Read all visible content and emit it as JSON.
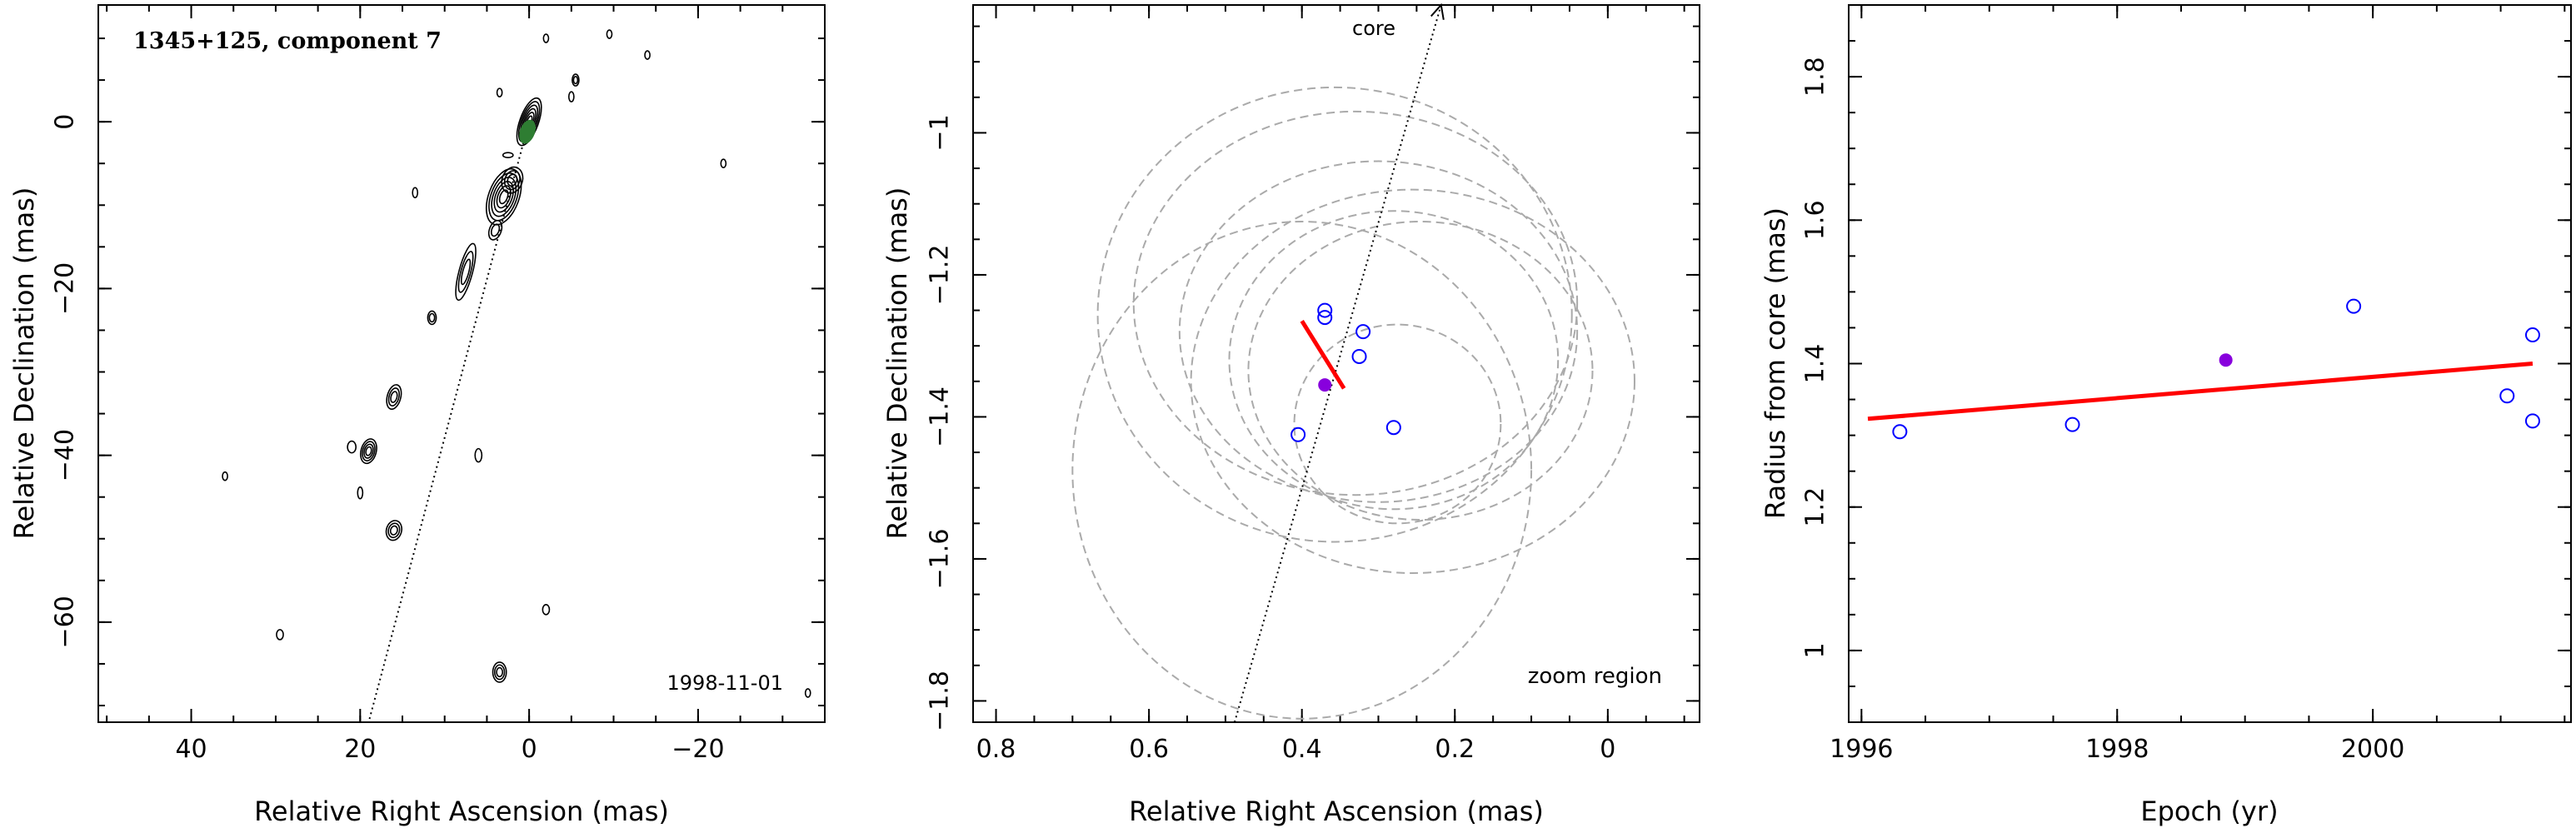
{
  "chart_data": [
    {
      "type": "scatter",
      "panel": "left",
      "title": "1345+125, component 7",
      "date": "1998-11-01",
      "xlabel": "Relative Right Ascension (mas)",
      "ylabel": "Relative Declination (mas)",
      "xlim": [
        51,
        -35
      ],
      "ylim": [
        -72,
        14
      ],
      "x_ticks": [
        40,
        20,
        0,
        -20
      ],
      "y_ticks": [
        0,
        -20,
        -40,
        -60
      ],
      "x_tick_labels": [
        "40",
        "20",
        "0",
        "−20"
      ],
      "y_tick_labels": [
        "0",
        "−20",
        "−40",
        "−60"
      ],
      "jet_line": {
        "x": [
          0.37,
          19
        ],
        "y": [
          -1.35,
          -72
        ]
      },
      "contours": [
        {
          "x": 0,
          "y": 0,
          "rx": 1.1,
          "ry": 3,
          "rot": 20,
          "n": 6
        },
        {
          "x": 3,
          "y": -9,
          "rx": 1.8,
          "ry": 3.5,
          "rot": 20,
          "n": 6
        },
        {
          "x": 2,
          "y": -7,
          "rx": 1.2,
          "ry": 1.6,
          "rot": 20,
          "n": 3
        },
        {
          "x": 4,
          "y": -13,
          "rx": 0.7,
          "ry": 1.2,
          "rot": 20,
          "n": 2
        },
        {
          "x": 7.5,
          "y": -18,
          "rx": 0.8,
          "ry": 3.5,
          "rot": 15,
          "n": 3
        },
        {
          "x": 11.5,
          "y": -23.5,
          "rx": 0.5,
          "ry": 0.8,
          "rot": 0,
          "n": 2
        },
        {
          "x": 16,
          "y": -33,
          "rx": 0.8,
          "ry": 1.5,
          "rot": 15,
          "n": 3
        },
        {
          "x": 19,
          "y": -39.5,
          "rx": 0.9,
          "ry": 1.5,
          "rot": 15,
          "n": 4
        },
        {
          "x": 16,
          "y": -49,
          "rx": 0.9,
          "ry": 1.2,
          "rot": 15,
          "n": 3
        },
        {
          "x": 3.5,
          "y": -66,
          "rx": 0.8,
          "ry": 1.2,
          "rot": 0,
          "n": 3
        },
        {
          "x": 21,
          "y": -39,
          "rx": 0.5,
          "ry": 0.7,
          "rot": 0,
          "n": 1
        },
        {
          "x": 20,
          "y": -44.5,
          "rx": 0.3,
          "ry": 0.7,
          "rot": 0,
          "n": 1
        },
        {
          "x": 6,
          "y": -40,
          "rx": 0.4,
          "ry": 0.8,
          "rot": 0,
          "n": 1
        },
        {
          "x": -5.5,
          "y": 5,
          "rx": 0.4,
          "ry": 0.7,
          "rot": 0,
          "n": 2
        },
        {
          "x": -5,
          "y": 3,
          "rx": 0.3,
          "ry": 0.6,
          "rot": 0,
          "n": 1
        },
        {
          "x": -2,
          "y": 10,
          "rx": 0.3,
          "ry": 0.5,
          "rot": 0,
          "n": 1
        },
        {
          "x": 3.5,
          "y": 3.5,
          "rx": 0.3,
          "ry": 0.5,
          "rot": 0,
          "n": 1
        },
        {
          "x": 2.5,
          "y": -4,
          "rx": 0.6,
          "ry": 0.3,
          "rot": 0,
          "n": 1
        },
        {
          "x": 29.5,
          "y": -61.5,
          "rx": 0.4,
          "ry": 0.6,
          "rot": 0,
          "n": 1
        },
        {
          "x": -2,
          "y": -58.5,
          "rx": 0.4,
          "ry": 0.6,
          "rot": 0,
          "n": 1
        },
        {
          "x": -23,
          "y": -5,
          "rx": 0.3,
          "ry": 0.5,
          "rot": 0,
          "n": 1
        },
        {
          "x": 13.5,
          "y": -8.5,
          "rx": 0.3,
          "ry": 0.6,
          "rot": 0,
          "n": 1
        },
        {
          "x": -14,
          "y": 8,
          "rx": 0.3,
          "ry": 0.5,
          "rot": 0,
          "n": 1
        },
        {
          "x": -9.5,
          "y": 10.5,
          "rx": 0.3,
          "ry": 0.5,
          "rot": 0,
          "n": 1
        },
        {
          "x": 36,
          "y": -42.5,
          "rx": 0.3,
          "ry": 0.5,
          "rot": 0,
          "n": 1
        },
        {
          "x": -33,
          "y": -68.5,
          "rx": 0.3,
          "ry": 0.5,
          "rot": 0,
          "n": 1
        }
      ],
      "highlight": {
        "x": 0.2,
        "y": -1.2,
        "color": "#2e7d32"
      }
    },
    {
      "type": "scatter",
      "panel": "middle",
      "xlabel": "Relative Right Ascension (mas)",
      "ylabel": "Relative Declination (mas)",
      "annotations": [
        "core",
        "zoom region"
      ],
      "xlim": [
        0.83,
        -0.12
      ],
      "ylim": [
        -1.83,
        -0.82
      ],
      "x_ticks": [
        0.8,
        0.6,
        0.4,
        0.2,
        0
      ],
      "y_ticks": [
        -1,
        -1.2,
        -1.4,
        -1.6,
        -1.8
      ],
      "x_tick_labels": [
        "0.8",
        "0.6",
        "0.4",
        "0.2",
        "0"
      ],
      "y_tick_labels": [
        "−1",
        "−1.2",
        "−1.4",
        "−1.6",
        "−1.8"
      ],
      "jet_line": {
        "x": [
          0.488,
          0.218
        ],
        "y": [
          -1.83,
          -0.82
        ]
      },
      "observations": {
        "x": [
          0.37,
          0.37,
          0.32,
          0.325,
          0.28,
          0.405
        ],
        "y": [
          -1.25,
          -1.26,
          -1.28,
          -1.315,
          -1.415,
          -1.425
        ],
        "color": "#0000ff"
      },
      "mean_position": {
        "x": 0.37,
        "y": -1.355,
        "color": "#8800dd"
      },
      "motion_vector": {
        "x": [
          0.4,
          0.345
        ],
        "y": [
          -1.265,
          -1.36
        ],
        "color": "#ff0000"
      },
      "beam_ellipses": [
        {
          "x": 0.357,
          "y": -1.256,
          "rx": 0.31,
          "ry": 0.32
        },
        {
          "x": 0.33,
          "y": -1.24,
          "rx": 0.29,
          "ry": 0.27
        },
        {
          "x": 0.3,
          "y": -1.28,
          "rx": 0.26,
          "ry": 0.24
        },
        {
          "x": 0.245,
          "y": -1.335,
          "rx": 0.225,
          "ry": 0.21
        },
        {
          "x": 0.28,
          "y": -1.32,
          "rx": 0.215,
          "ry": 0.21
        },
        {
          "x": 0.255,
          "y": -1.35,
          "rx": 0.29,
          "ry": 0.27
        },
        {
          "x": 0.4,
          "y": -1.475,
          "rx": 0.3,
          "ry": 0.35
        },
        {
          "x": 0.275,
          "y": -1.41,
          "rx": 0.135,
          "ry": 0.14
        }
      ],
      "colors": {
        "ellipse": "#aaaaaa",
        "observation": "#0000ff",
        "mean": "#8800dd",
        "fit": "#ff0000"
      }
    },
    {
      "type": "scatter",
      "panel": "right",
      "xlabel": "Epoch (yr)",
      "ylabel": "Radius from core (mas)",
      "xlim": [
        1995.9,
        2001.55
      ],
      "ylim": [
        0.9,
        1.9
      ],
      "x_ticks": [
        1996,
        1998,
        2000
      ],
      "y_ticks": [
        1,
        1.2,
        1.4,
        1.6,
        1.8
      ],
      "x_tick_labels": [
        "1996",
        "1998",
        "2000"
      ],
      "y_tick_labels": [
        "1",
        "1.2",
        "1.4",
        "1.6",
        "1.8"
      ],
      "observations": {
        "x": [
          1996.3,
          1997.65,
          1999.85,
          2001.05,
          2001.25,
          2001.25
        ],
        "y": [
          1.305,
          1.315,
          1.48,
          1.355,
          1.44,
          1.32
        ],
        "color": "#0000ff"
      },
      "mean_point": {
        "x": 1998.85,
        "y": 1.405,
        "color": "#8800dd"
      },
      "fit_line": {
        "x": [
          1996.05,
          2001.25
        ],
        "y": [
          1.323,
          1.4
        ],
        "color": "#ff0000"
      }
    }
  ]
}
